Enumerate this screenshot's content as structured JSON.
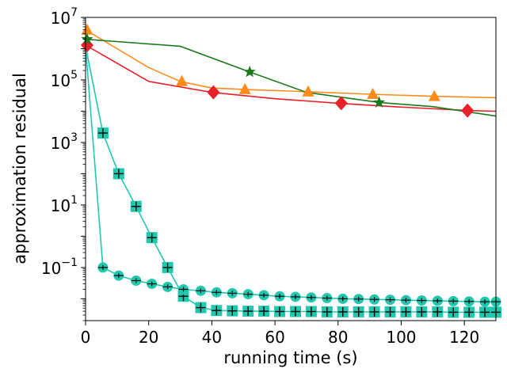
{
  "chart_data": {
    "type": "line",
    "xlabel": "running time (s)",
    "ylabel": "approximation residual",
    "xlim": [
      0,
      130
    ],
    "ylim_log10": [
      -2.7,
      7
    ],
    "yscale": "log",
    "grid": false,
    "legend": "none",
    "x_ticks": [
      {
        "value": 0,
        "label": "0"
      },
      {
        "value": 20,
        "label": "20"
      },
      {
        "value": 40,
        "label": "40"
      },
      {
        "value": 60,
        "label": "60"
      },
      {
        "value": 80,
        "label": "80"
      },
      {
        "value": 100,
        "label": "100"
      },
      {
        "value": 120,
        "label": "120"
      }
    ],
    "y_ticks": [
      {
        "exp": 7,
        "base": "10",
        "sup": "7"
      },
      {
        "exp": 5,
        "base": "10",
        "sup": "5"
      },
      {
        "exp": 3,
        "base": "10",
        "sup": "3"
      },
      {
        "exp": 1,
        "base": "10",
        "sup": "1"
      },
      {
        "exp": -1,
        "base": "10",
        "sup": "−1"
      }
    ],
    "series": [
      {
        "color": "#e8202a",
        "marker": "diamond",
        "x": [
          0,
          20,
          40,
          60,
          80,
          100,
          121,
          130
        ],
        "y": [
          1300000.0,
          90000.0,
          40000.0,
          25000.0,
          18000.0,
          13500.0,
          10500.0,
          10000.0
        ],
        "marker_x": [
          0.5,
          40.5,
          81,
          121
        ],
        "marker_y": [
          1300000.0,
          40000.0,
          18000.0,
          10500.0
        ]
      },
      {
        "color": "#ff8c1a",
        "marker": "triangle",
        "x": [
          0,
          10,
          20,
          30,
          40,
          50,
          70,
          90,
          110,
          130
        ],
        "y": [
          4000000.0,
          1000000.0,
          250000.0,
          90000.0,
          55000.0,
          50000.0,
          42000.0,
          35000.0,
          30000.0,
          27000.0
        ],
        "marker_x": [
          0.5,
          30.5,
          50.5,
          70.5,
          91,
          110.5
        ],
        "marker_y": [
          4000000.0,
          90000.0,
          50000.0,
          42000.0,
          35000.0,
          30000.0
        ]
      },
      {
        "color": "#1a7a1a",
        "marker": "star",
        "x": [
          0,
          30,
          52,
          70,
          93,
          110,
          130
        ],
        "y": [
          2000000.0,
          1200000.0,
          180000.0,
          40000.0,
          19000.0,
          14000.0,
          7000.0
        ],
        "marker_x": [
          0.5,
          52,
          93
        ],
        "marker_y": [
          2000000.0,
          180000.0,
          19000.0
        ]
      },
      {
        "color": "#20c8b0",
        "marker": "square-plus",
        "x": [
          0,
          5.5,
          10.5,
          16,
          21,
          26,
          31,
          36.5,
          41.5,
          46.5,
          51.5,
          56.5,
          61.5,
          66.5,
          71.5,
          76.5,
          81.5,
          86.5,
          91.5,
          96.5,
          101.5,
          106.5,
          111.5,
          116.5,
          121.5,
          126.5,
          130
        ],
        "y": [
          1200000.0,
          2000,
          100,
          9,
          0.9,
          0.1,
          0.012,
          0.0052,
          0.0042,
          0.0041,
          0.004,
          0.004,
          0.0039,
          0.0039,
          0.0039,
          0.0038,
          0.0038,
          0.0038,
          0.0038,
          0.0038,
          0.0038,
          0.0038,
          0.0038,
          0.0037,
          0.0037,
          0.0037,
          0.0037
        ],
        "marker_x": [
          5.5,
          10.5,
          16,
          21,
          26,
          31,
          36.5,
          41.5,
          46.5,
          51.5,
          56.5,
          61.5,
          66.5,
          71.5,
          76.5,
          81.5,
          86.5,
          91.5,
          96.5,
          101.5,
          106.5,
          111.5,
          116.5,
          121.5,
          126.5,
          130
        ],
        "marker_y": [
          2000,
          100,
          9,
          0.9,
          0.1,
          0.012,
          0.0052,
          0.0042,
          0.0041,
          0.004,
          0.004,
          0.0039,
          0.0039,
          0.0039,
          0.0038,
          0.0038,
          0.0038,
          0.0038,
          0.0038,
          0.0038,
          0.0038,
          0.0038,
          0.0037,
          0.0037,
          0.0037,
          0.0037
        ]
      },
      {
        "color": "#20c8b0",
        "marker": "circle-plus",
        "x": [
          0,
          5.5,
          10.5,
          16,
          21,
          26,
          31,
          36.5,
          41.5,
          46.5,
          51.5,
          56.5,
          61.5,
          66.5,
          71.5,
          76.5,
          81.5,
          86.5,
          91.5,
          96.5,
          101.5,
          106.5,
          111.5,
          116.5,
          121.5,
          126.5,
          130
        ],
        "y": [
          1200000.0,
          0.1,
          0.055,
          0.038,
          0.03,
          0.024,
          0.02,
          0.018,
          0.016,
          0.015,
          0.014,
          0.013,
          0.012,
          0.0115,
          0.011,
          0.0105,
          0.01,
          0.0098,
          0.0095,
          0.0093,
          0.009,
          0.0088,
          0.0086,
          0.0084,
          0.0082,
          0.008,
          0.008
        ],
        "marker_x": [
          5.5,
          10.5,
          16,
          21,
          26,
          31,
          36.5,
          41.5,
          46.5,
          51.5,
          56.5,
          61.5,
          66.5,
          71.5,
          76.5,
          81.5,
          86.5,
          91.5,
          96.5,
          101.5,
          106.5,
          111.5,
          116.5,
          121.5,
          126.5,
          130
        ],
        "marker_y": [
          0.1,
          0.055,
          0.038,
          0.03,
          0.024,
          0.02,
          0.018,
          0.016,
          0.015,
          0.014,
          0.013,
          0.012,
          0.0115,
          0.011,
          0.0105,
          0.01,
          0.0098,
          0.0095,
          0.0093,
          0.009,
          0.0088,
          0.0086,
          0.0084,
          0.0082,
          0.008,
          0.008
        ]
      }
    ]
  }
}
